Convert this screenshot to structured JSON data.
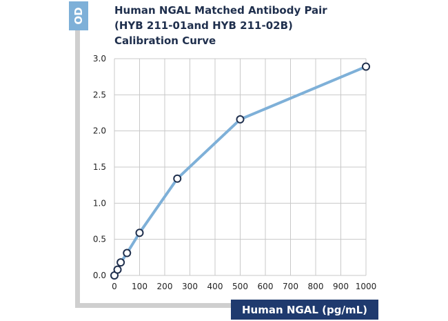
{
  "chart_data": {
    "type": "line",
    "title_lines": [
      "Human NGAL Matched Antibody Pair",
      "(HYB 211-01and HYB 211-02B)",
      "Calibration Curve"
    ],
    "xlabel": "Human NGAL (pg/mL)",
    "ylabel": "OD",
    "xlim": [
      0,
      1000
    ],
    "ylim": [
      0,
      3.0
    ],
    "x_ticks": [
      0,
      100,
      200,
      300,
      400,
      500,
      600,
      700,
      800,
      900,
      1000
    ],
    "y_ticks": [
      "0.0",
      "0.5",
      "1.0",
      "1.5",
      "2.0",
      "2.5",
      "3.0"
    ],
    "grid": true,
    "series": [
      {
        "x": [
          0,
          12.5,
          25,
          50,
          100,
          250,
          500,
          1000
        ],
        "y": [
          0.0,
          0.08,
          0.18,
          0.31,
          0.59,
          1.34,
          2.16,
          2.89
        ],
        "color": "#7eb0d8",
        "marker_edge": "#1f2f4d"
      }
    ],
    "colors": {
      "title": "#1f2f4d",
      "badge": "#1f3a6e",
      "ylabel_badge": "#7eb0d8",
      "grid": "#c8c8c8",
      "frame": "#cfcfcf"
    }
  }
}
